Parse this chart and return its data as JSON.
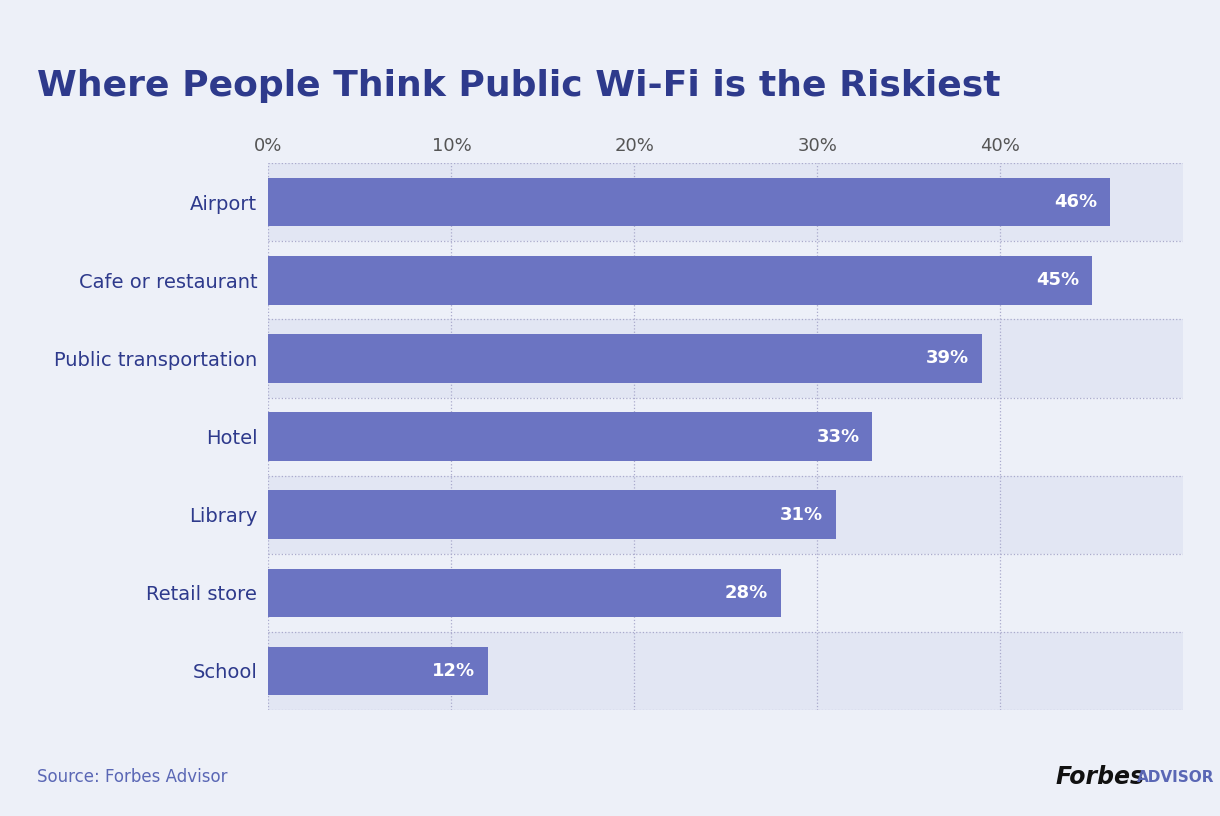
{
  "title": "Where People Think Public Wi-Fi is the Riskiest",
  "categories": [
    "School",
    "Retail store",
    "Library",
    "Hotel",
    "Public transportation",
    "Cafe or restaurant",
    "Airport"
  ],
  "values": [
    12,
    28,
    31,
    33,
    39,
    45,
    46
  ],
  "bar_color": "#6b74c2",
  "bg_color": "#edf0f8",
  "header_stripe_color": "#5a67b5",
  "title_color": "#2e3a8c",
  "label_color": "#2e3a8c",
  "value_label_color": "#ffffff",
  "source_text": "Source: Forbes Advisor",
  "footer_bg_color": "#edf0f8",
  "row_color_even": "#e2e6f3",
  "row_color_odd": "#edf0f8",
  "grid_color": "#aaaacc",
  "xlim": [
    0,
    50
  ],
  "xticks": [
    0,
    10,
    20,
    30,
    40
  ],
  "xtick_labels": [
    "0%",
    "10%",
    "20%",
    "30%",
    "40%"
  ],
  "title_fontsize": 26,
  "label_fontsize": 14,
  "tick_fontsize": 13,
  "value_fontsize": 13,
  "source_fontsize": 12
}
